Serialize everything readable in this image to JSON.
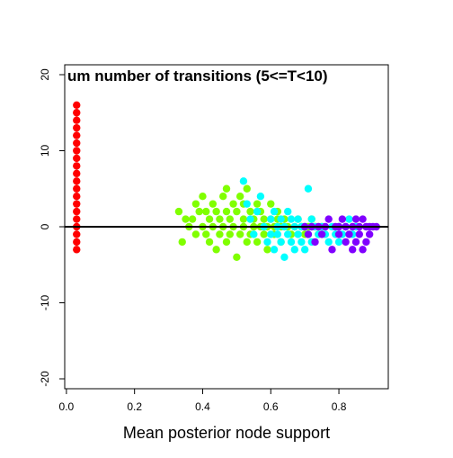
{
  "chart_data": {
    "type": "scatter",
    "title": "um number of transitions (5<=T<10)",
    "xlabel": "Mean posterior node support",
    "ylabel": "",
    "xlim": [
      -0.005,
      0.945
    ],
    "ylim": [
      -21.3,
      21.3
    ],
    "x_ticks": [
      0.0,
      0.2,
      0.4,
      0.6,
      0.8
    ],
    "x_tick_labels": [
      "0.0",
      "0.2",
      "0.4",
      "0.6",
      "0.8"
    ],
    "y_ticks": [
      -20,
      -10,
      0,
      10,
      20
    ],
    "y_tick_labels": [
      "-20",
      "-10",
      "0",
      "10",
      "20"
    ],
    "reference_line": {
      "y": 0
    },
    "grid": false,
    "legend": "none",
    "series": [
      {
        "color": "#ff0000",
        "points": [
          [
            0.03,
            -3
          ],
          [
            0.03,
            -2
          ],
          [
            0.03,
            -1
          ],
          [
            0.03,
            0
          ],
          [
            0.03,
            1
          ],
          [
            0.03,
            2
          ],
          [
            0.03,
            3
          ],
          [
            0.03,
            4
          ],
          [
            0.03,
            5
          ],
          [
            0.03,
            6
          ],
          [
            0.03,
            7
          ],
          [
            0.03,
            8
          ],
          [
            0.03,
            9
          ],
          [
            0.03,
            10
          ],
          [
            0.03,
            11
          ],
          [
            0.03,
            12
          ],
          [
            0.03,
            13
          ],
          [
            0.03,
            14
          ],
          [
            0.03,
            15
          ],
          [
            0.03,
            16
          ]
        ]
      },
      {
        "color": "#80ff00",
        "points": [
          [
            0.33,
            2
          ],
          [
            0.34,
            -2
          ],
          [
            0.35,
            1
          ],
          [
            0.36,
            0
          ],
          [
            0.37,
            1
          ],
          [
            0.38,
            3
          ],
          [
            0.38,
            -1
          ],
          [
            0.39,
            2
          ],
          [
            0.4,
            4
          ],
          [
            0.4,
            0
          ],
          [
            0.41,
            2
          ],
          [
            0.41,
            -1
          ],
          [
            0.42,
            1
          ],
          [
            0.42,
            -2
          ],
          [
            0.43,
            3
          ],
          [
            0.43,
            0
          ],
          [
            0.44,
            -3
          ],
          [
            0.44,
            2
          ],
          [
            0.45,
            1
          ],
          [
            0.45,
            -1
          ],
          [
            0.46,
            0
          ],
          [
            0.46,
            4
          ],
          [
            0.47,
            5
          ],
          [
            0.47,
            2
          ],
          [
            0.47,
            -2
          ],
          [
            0.48,
            1
          ],
          [
            0.48,
            -1
          ],
          [
            0.49,
            3
          ],
          [
            0.49,
            0
          ],
          [
            0.5,
            -4
          ],
          [
            0.5,
            2
          ],
          [
            0.51,
            4
          ],
          [
            0.51,
            -1
          ],
          [
            0.52,
            0
          ],
          [
            0.52,
            3
          ],
          [
            0.52,
            1
          ],
          [
            0.53,
            -2
          ],
          [
            0.53,
            5
          ],
          [
            0.54,
            2
          ],
          [
            0.54,
            -1
          ],
          [
            0.55,
            0
          ],
          [
            0.55,
            1
          ],
          [
            0.56,
            3
          ],
          [
            0.56,
            -2
          ],
          [
            0.57,
            0
          ],
          [
            0.57,
            2
          ],
          [
            0.58,
            -1
          ],
          [
            0.58,
            1
          ],
          [
            0.59,
            0
          ],
          [
            0.59,
            -3
          ],
          [
            0.6,
            1
          ],
          [
            0.6,
            3
          ],
          [
            0.61,
            0
          ],
          [
            0.61,
            -1
          ],
          [
            0.62,
            1
          ],
          [
            0.62,
            2
          ],
          [
            0.63,
            0
          ],
          [
            0.63,
            -2
          ],
          [
            0.64,
            1
          ],
          [
            0.65,
            0
          ],
          [
            0.66,
            -1
          ],
          [
            0.67,
            0
          ],
          [
            0.68,
            1
          ],
          [
            0.69,
            0
          ],
          [
            0.7,
            -1
          ],
          [
            0.71,
            0
          ],
          [
            0.72,
            1
          ],
          [
            0.73,
            0
          ],
          [
            0.74,
            -1
          ],
          [
            0.75,
            0
          ]
        ]
      },
      {
        "color": "#00ffff",
        "points": [
          [
            0.52,
            6
          ],
          [
            0.53,
            3
          ],
          [
            0.54,
            1
          ],
          [
            0.55,
            -1
          ],
          [
            0.56,
            2
          ],
          [
            0.57,
            4
          ],
          [
            0.58,
            0
          ],
          [
            0.59,
            -2
          ],
          [
            0.6,
            1
          ],
          [
            0.6,
            -1
          ],
          [
            0.61,
            2
          ],
          [
            0.61,
            -3
          ],
          [
            0.62,
            0
          ],
          [
            0.62,
            -1
          ],
          [
            0.63,
            1
          ],
          [
            0.63,
            -2
          ],
          [
            0.64,
            -4
          ],
          [
            0.64,
            0
          ],
          [
            0.65,
            2
          ],
          [
            0.65,
            -1
          ],
          [
            0.66,
            1
          ],
          [
            0.66,
            -2
          ],
          [
            0.67,
            0
          ],
          [
            0.67,
            -3
          ],
          [
            0.68,
            1
          ],
          [
            0.68,
            -1
          ],
          [
            0.69,
            0
          ],
          [
            0.69,
            -2
          ],
          [
            0.7,
            0
          ],
          [
            0.7,
            -3
          ],
          [
            0.71,
            5
          ],
          [
            0.71,
            -1
          ],
          [
            0.72,
            -2
          ],
          [
            0.72,
            1
          ],
          [
            0.73,
            0
          ],
          [
            0.74,
            -1
          ],
          [
            0.75,
            0
          ],
          [
            0.76,
            -1
          ],
          [
            0.77,
            -2
          ],
          [
            0.78,
            0
          ],
          [
            0.79,
            -1
          ],
          [
            0.8,
            0
          ],
          [
            0.8,
            -2
          ],
          [
            0.81,
            -1
          ],
          [
            0.82,
            0
          ],
          [
            0.83,
            1
          ],
          [
            0.84,
            -1
          ],
          [
            0.85,
            0
          ]
        ]
      },
      {
        "color": "#8000ff",
        "points": [
          [
            0.7,
            0
          ],
          [
            0.71,
            -1
          ],
          [
            0.72,
            0
          ],
          [
            0.73,
            -2
          ],
          [
            0.74,
            0
          ],
          [
            0.75,
            -1
          ],
          [
            0.76,
            0
          ],
          [
            0.77,
            1
          ],
          [
            0.78,
            -3
          ],
          [
            0.79,
            0
          ],
          [
            0.8,
            -1
          ],
          [
            0.8,
            0
          ],
          [
            0.81,
            1
          ],
          [
            0.82,
            -2
          ],
          [
            0.82,
            0
          ],
          [
            0.83,
            -1
          ],
          [
            0.84,
            -3
          ],
          [
            0.84,
            0
          ],
          [
            0.85,
            1
          ],
          [
            0.85,
            -2
          ],
          [
            0.86,
            -1
          ],
          [
            0.86,
            0
          ],
          [
            0.87,
            1
          ],
          [
            0.87,
            -3
          ],
          [
            0.88,
            0
          ],
          [
            0.88,
            -2
          ],
          [
            0.89,
            -1
          ],
          [
            0.89,
            0
          ],
          [
            0.9,
            0
          ],
          [
            0.91,
            0
          ]
        ]
      }
    ]
  }
}
